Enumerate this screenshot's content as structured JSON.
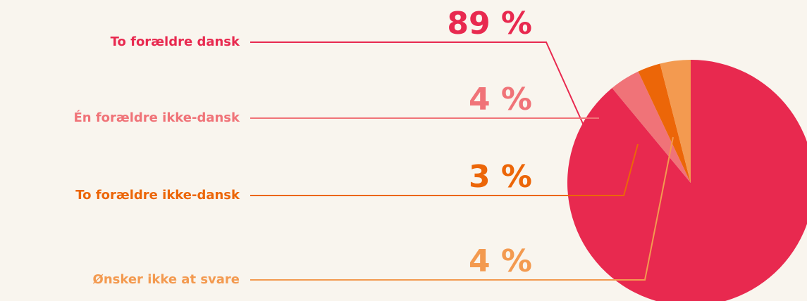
{
  "chart_data": {
    "type": "pie",
    "categories": [
      "To forældre dansk",
      "Én forældre ikke-dansk",
      "To forældre ikke-dansk",
      "Ønsker ikke at svare"
    ],
    "values": [
      89,
      4,
      3,
      4
    ],
    "value_labels": [
      "89 %",
      "4 %",
      "3 %",
      "4 %"
    ],
    "colors": [
      "#e8294f",
      "#f07378",
      "#ec6608",
      "#f39a50"
    ]
  }
}
